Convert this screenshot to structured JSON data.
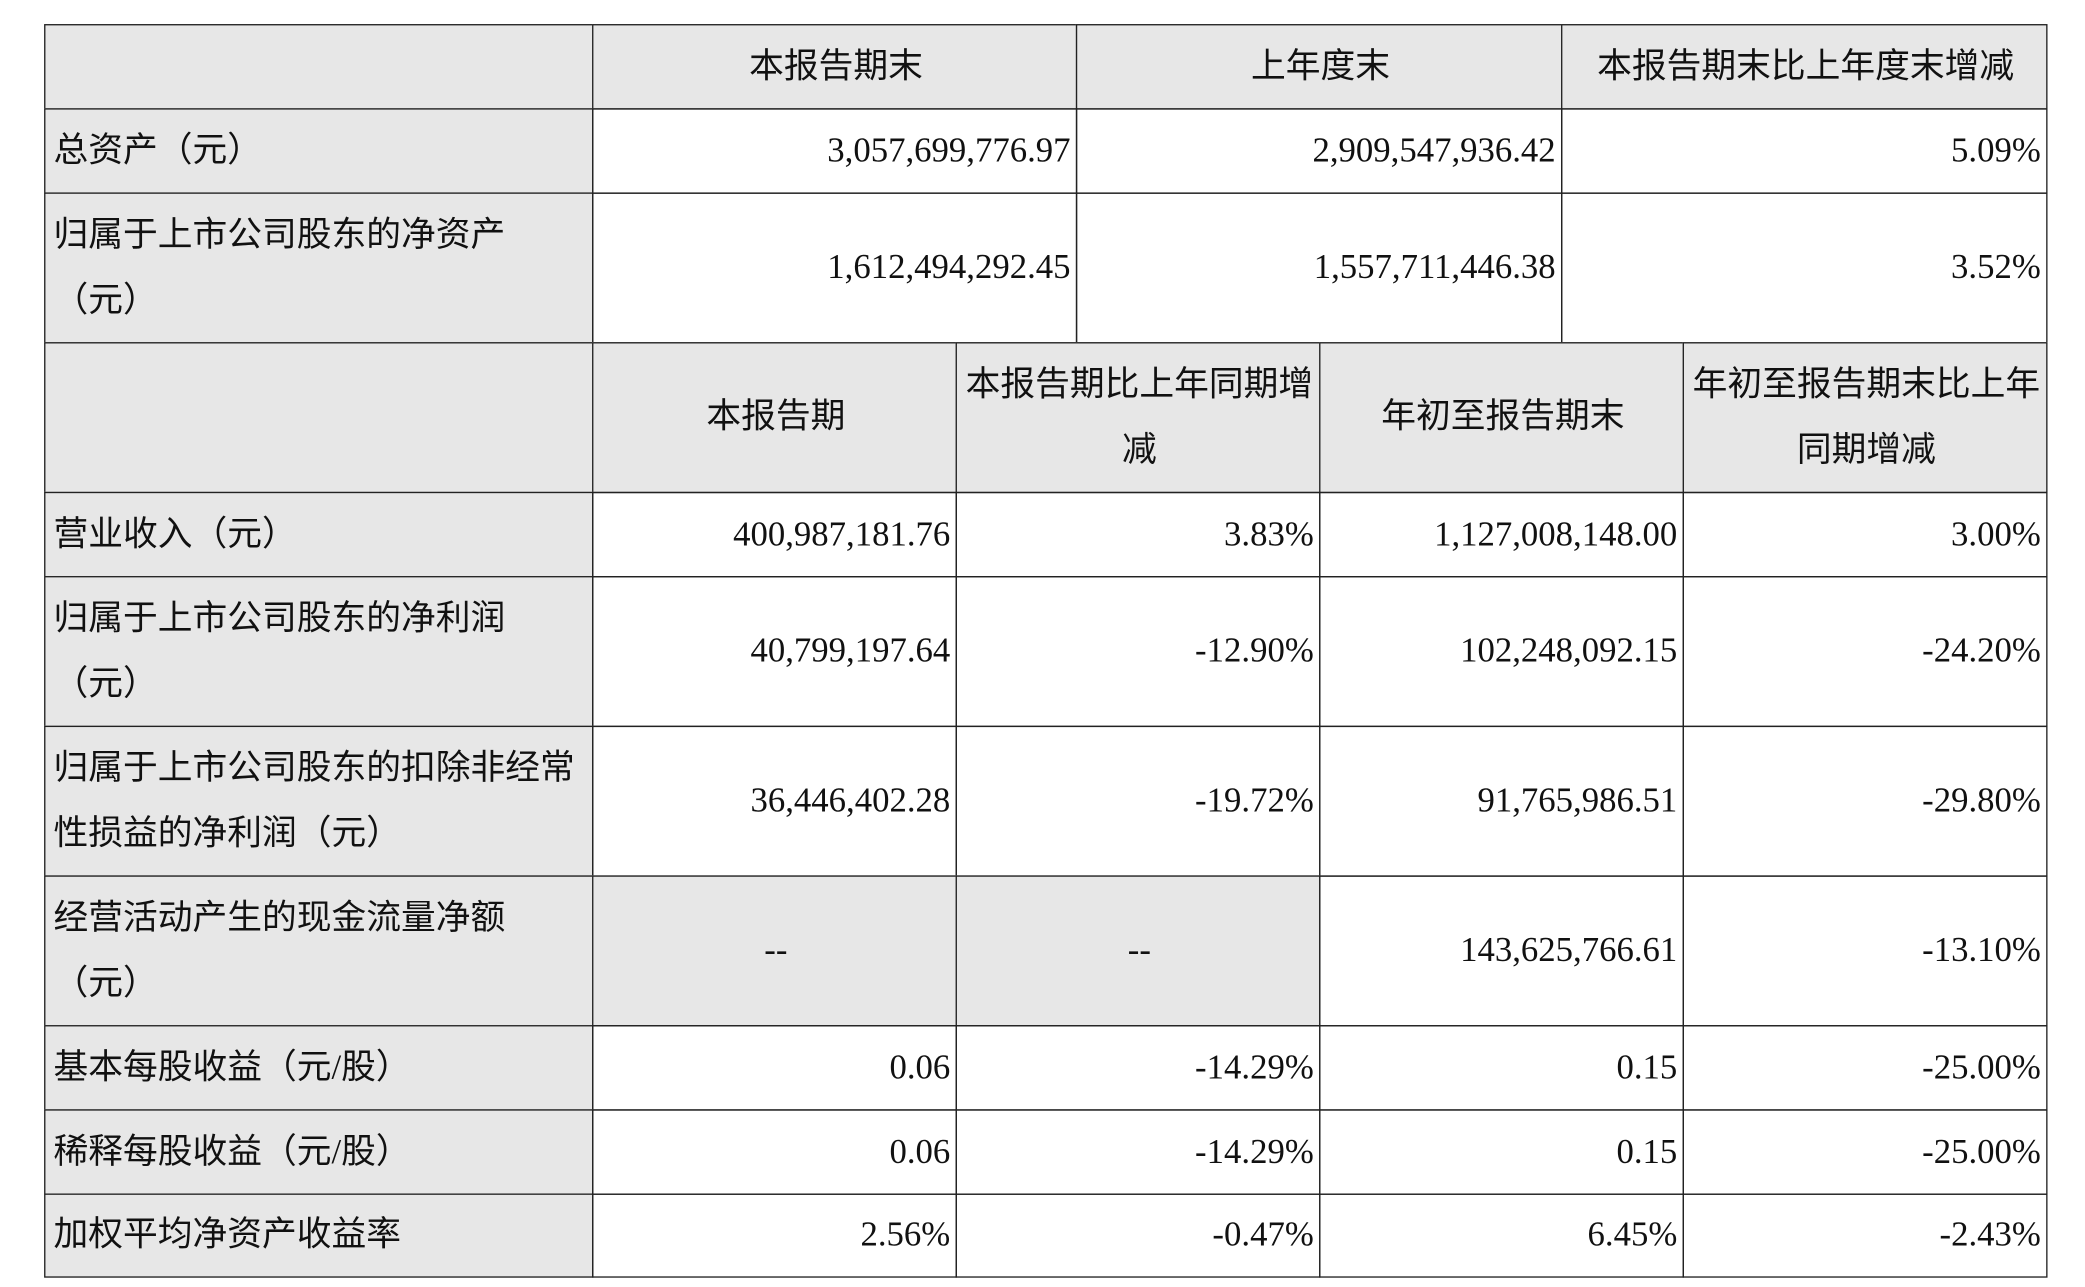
{
  "table1": {
    "header": [
      "本报告期末",
      "上年度末",
      "本报告期末比上年度末增减"
    ],
    "rows": [
      {
        "label": "总资产（元）",
        "cells": [
          "3,057,699,776.97",
          "2,909,547,936.42",
          "5.09%"
        ]
      },
      {
        "label": "归属于上市公司股东的净资产（元）",
        "cells": [
          "1,612,494,292.45",
          "1,557,711,446.38",
          "3.52%"
        ]
      }
    ]
  },
  "table2": {
    "header": [
      "本报告期",
      "本报告期比上年同期增减",
      "年初至报告期末",
      "年初至报告期末比上年同期增减"
    ],
    "rows": [
      {
        "label": "营业收入（元）",
        "cells": [
          "400,987,181.76",
          "3.83%",
          "1,127,008,148.00",
          "3.00%"
        ]
      },
      {
        "label": "归属于上市公司股东的净利润（元）",
        "cells": [
          "40,799,197.64",
          "-12.90%",
          "102,248,092.15",
          "-24.20%"
        ]
      },
      {
        "label": "归属于上市公司股东的扣除非经常性损益的净利润（元）",
        "cells": [
          "36,446,402.28",
          "-19.72%",
          "91,765,986.51",
          "-29.80%"
        ]
      },
      {
        "label": "经营活动产生的现金流量净额（元）",
        "cells": [
          "--",
          "--",
          "143,625,766.61",
          "-13.10%"
        ]
      },
      {
        "label": "基本每股收益（元/股）",
        "cells": [
          "0.06",
          "-14.29%",
          "0.15",
          "-25.00%"
        ]
      },
      {
        "label": "稀释每股收益（元/股）",
        "cells": [
          "0.06",
          "-14.29%",
          "0.15",
          "-25.00%"
        ]
      },
      {
        "label": "加权平均净资产收益率",
        "cells": [
          "2.56%",
          "-0.47%",
          "6.45%",
          "-2.43%"
        ]
      }
    ]
  }
}
